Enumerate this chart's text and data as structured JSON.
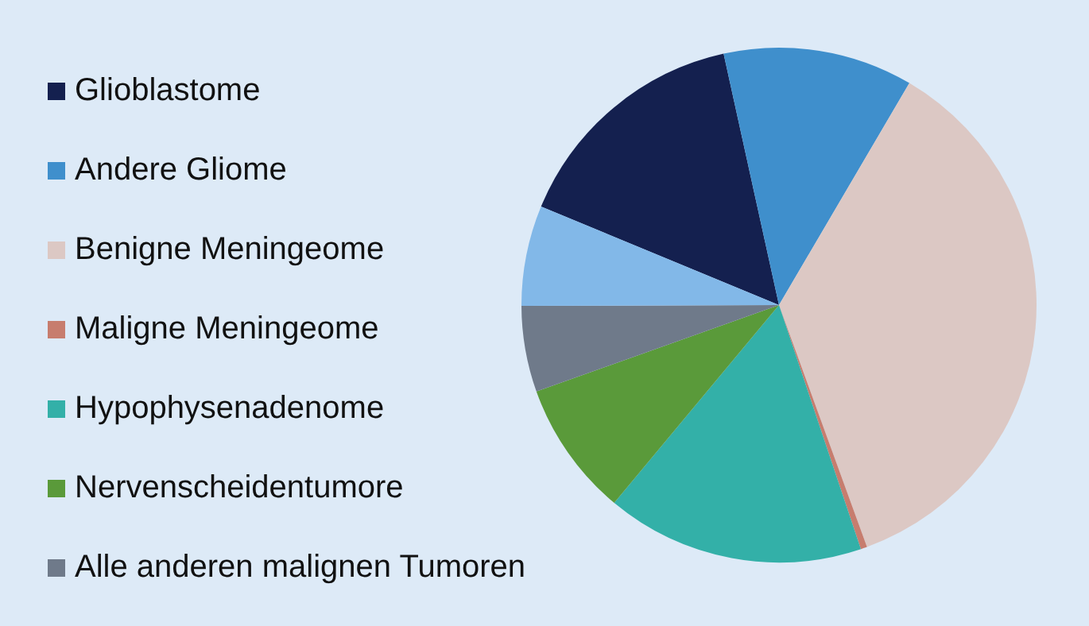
{
  "chart_data": {
    "type": "pie",
    "categories": [
      "Glioblastome",
      "Andere Gliome",
      "Benigne Meningeome",
      "Maligne Meningeome",
      "Hypophysenadenome",
      "Nervenscheidentumore",
      "Alle anderen malignen Tumoren",
      null
    ],
    "values": [
      15.3,
      11.9,
      36.0,
      0.4,
      16.2,
      8.5,
      5.4,
      6.3
    ],
    "colors": [
      "#14204f",
      "#3f8fcc",
      "#dcc8c4",
      "#c77d6e",
      "#33b0a8",
      "#5a9a3a",
      "#6f7a8a",
      "#82b8e8"
    ],
    "legend": "left"
  }
}
